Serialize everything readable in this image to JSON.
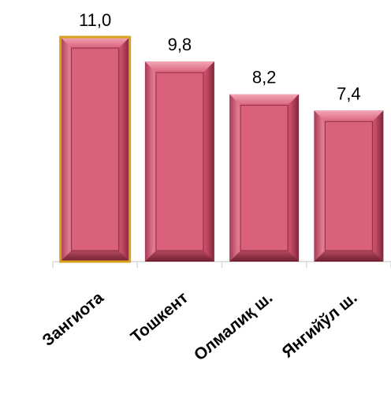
{
  "chart_data": {
    "type": "bar",
    "categories": [
      "Зангиота",
      "Тошкент",
      "Олмалиқ ш.",
      "Янгийўл ш."
    ],
    "values": [
      11.0,
      9.8,
      8.2,
      7.4
    ],
    "value_labels": [
      "11,0",
      "9,8",
      "8,2",
      "7,4"
    ],
    "title": "",
    "xlabel": "",
    "ylabel": "",
    "ylim": [
      0,
      11.0
    ],
    "grid": false,
    "legend": "none",
    "colors": {
      "bar_fill": "#d9627a",
      "bar_highlight": "#e98aa0",
      "bar_shadow": "#8c2f42",
      "first_bar_outline": "#d8a21a",
      "axis": "#d9d9d9"
    }
  }
}
